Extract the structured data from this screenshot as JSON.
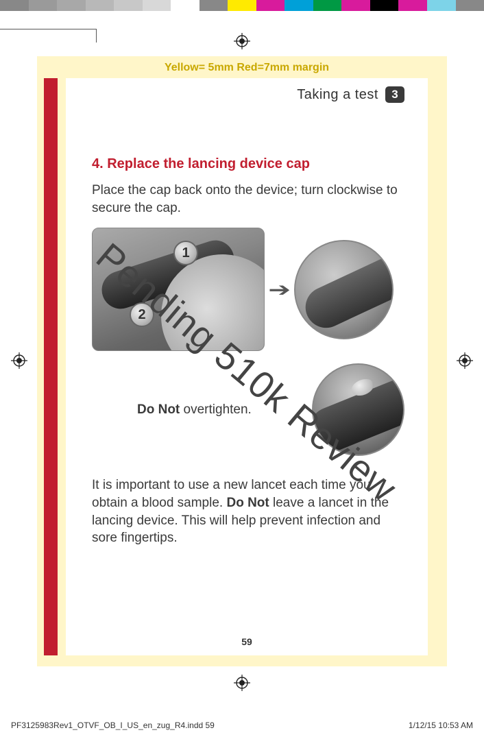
{
  "color_bar": [
    "#888888",
    "#9a9a9a",
    "#a8a8a8",
    "#b8b8b8",
    "#c8c8c8",
    "#d8d8d8",
    "#ffffff",
    "#888888",
    "#ffea00",
    "#d81b9c",
    "#00a0d8",
    "#009944",
    "#d81b9c",
    "#000000",
    "#d81b9c",
    "#7dd3e8",
    "#888888"
  ],
  "margin_note": "Yellow= 5mm  Red=7mm margin",
  "header": {
    "title": "Taking a test",
    "badge": "3"
  },
  "step": {
    "title": "4. Replace the lancing device cap",
    "body": "Place the cap back onto the device; turn clockwise to secure the cap."
  },
  "callouts": {
    "c1": "1",
    "c2": "2"
  },
  "caption": {
    "bold": "Do Not",
    "rest": " overtighten."
  },
  "note": {
    "pre": "It is important to use a new lancet each time you obtain a blood sample. ",
    "bold": "Do Not",
    "post": " leave a lancet in the lancing device. This will help prevent infection and sore fingertips."
  },
  "watermark": "Pending 510k Review",
  "page_number": "59",
  "footer": {
    "left": "PF3125983Rev1_OTVF_OB_I_US_en_zug_R4.indd   59",
    "right": "1/12/15   10:53 AM"
  }
}
